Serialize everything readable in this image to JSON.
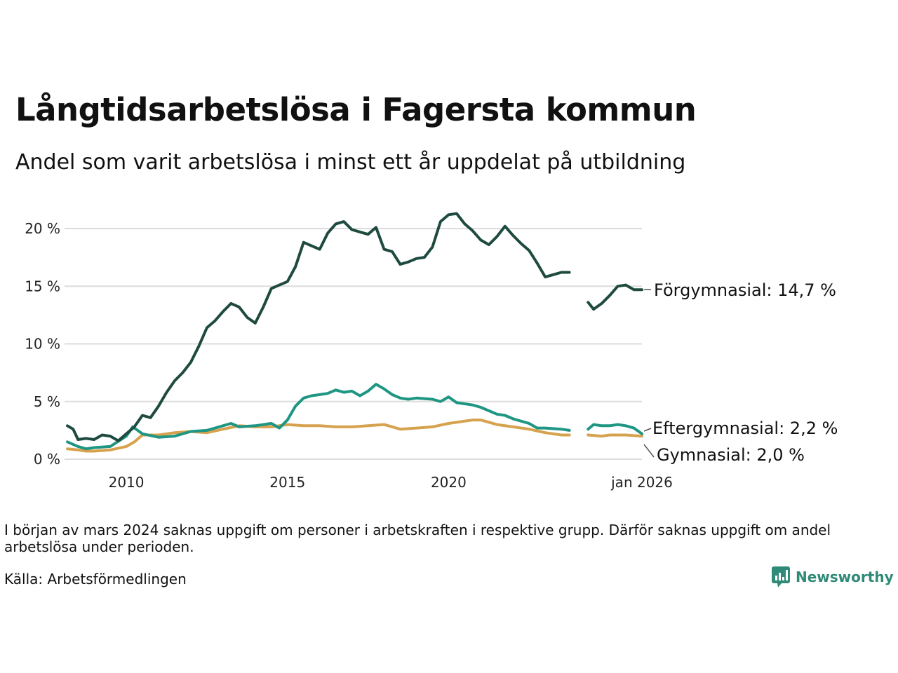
{
  "title": "Långtidsarbetslösa i Fagersta kommun",
  "subtitle": "Andel som varit arbetslösa i minst ett år uppdelat på utbildning",
  "note": "I början av mars 2024 saknas uppgift om personer i arbetskraften i respektive grupp. Därför saknas uppgift om andel arbetslösa under perioden.",
  "source": "Källa: Arbetsförmedlingen",
  "brand": "Newsworthy",
  "colors": {
    "forgymnasial": "#1f4a40",
    "eftergymnasial": "#1f9683",
    "gymnasial": "#d6a24e",
    "grid": "#dcdcdc",
    "brand": "#2f8a77"
  },
  "chart_data": {
    "type": "line",
    "x_start": 2008.17,
    "x_end": 2026.0,
    "ylim": [
      0,
      23
    ],
    "yticks": [
      0,
      5,
      10,
      15,
      20
    ],
    "ytick_labels": [
      "0 %",
      "5 %",
      "10 %",
      "15 %",
      "20 %"
    ],
    "xticks": [
      2010,
      2015,
      2020,
      2026
    ],
    "xtick_labels": [
      "2010",
      "2015",
      "2020",
      "jan 2026"
    ],
    "gap": [
      2023.9,
      2024.2
    ],
    "series": [
      {
        "name": "Förgymnasial",
        "label": "Förgymnasial: 14,7 %",
        "color_key": "forgymnasial",
        "points": [
          [
            2008.17,
            2.9
          ],
          [
            2008.35,
            2.6
          ],
          [
            2008.5,
            1.7
          ],
          [
            2008.75,
            1.8
          ],
          [
            2009.0,
            1.7
          ],
          [
            2009.25,
            2.1
          ],
          [
            2009.5,
            2.0
          ],
          [
            2009.75,
            1.6
          ],
          [
            2010.0,
            2.2
          ],
          [
            2010.25,
            2.8
          ],
          [
            2010.5,
            3.8
          ],
          [
            2010.75,
            3.6
          ],
          [
            2011.0,
            4.6
          ],
          [
            2011.25,
            5.8
          ],
          [
            2011.5,
            6.8
          ],
          [
            2011.75,
            7.5
          ],
          [
            2012.0,
            8.4
          ],
          [
            2012.25,
            9.8
          ],
          [
            2012.5,
            11.4
          ],
          [
            2012.75,
            12.0
          ],
          [
            2013.0,
            12.8
          ],
          [
            2013.25,
            13.5
          ],
          [
            2013.5,
            13.2
          ],
          [
            2013.75,
            12.3
          ],
          [
            2014.0,
            11.8
          ],
          [
            2014.25,
            13.2
          ],
          [
            2014.5,
            14.8
          ],
          [
            2014.75,
            15.1
          ],
          [
            2015.0,
            15.4
          ],
          [
            2015.25,
            16.7
          ],
          [
            2015.5,
            18.8
          ],
          [
            2015.75,
            18.5
          ],
          [
            2016.0,
            18.2
          ],
          [
            2016.25,
            19.6
          ],
          [
            2016.5,
            20.4
          ],
          [
            2016.75,
            20.6
          ],
          [
            2017.0,
            19.9
          ],
          [
            2017.25,
            19.7
          ],
          [
            2017.5,
            19.5
          ],
          [
            2017.75,
            20.1
          ],
          [
            2018.0,
            18.2
          ],
          [
            2018.25,
            18.0
          ],
          [
            2018.5,
            16.9
          ],
          [
            2018.75,
            17.1
          ],
          [
            2019.0,
            17.4
          ],
          [
            2019.25,
            17.5
          ],
          [
            2019.5,
            18.4
          ],
          [
            2019.75,
            20.6
          ],
          [
            2020.0,
            21.2
          ],
          [
            2020.25,
            21.3
          ],
          [
            2020.5,
            20.4
          ],
          [
            2020.75,
            19.8
          ],
          [
            2021.0,
            19.0
          ],
          [
            2021.25,
            18.6
          ],
          [
            2021.5,
            19.3
          ],
          [
            2021.75,
            20.2
          ],
          [
            2022.0,
            19.4
          ],
          [
            2022.25,
            18.7
          ],
          [
            2022.5,
            18.1
          ],
          [
            2022.75,
            17.0
          ],
          [
            2023.0,
            15.8
          ],
          [
            2023.25,
            16.0
          ],
          [
            2023.5,
            16.2
          ],
          [
            2023.75,
            16.2
          ],
          [
            2024.33,
            13.6
          ],
          [
            2024.5,
            13.0
          ],
          [
            2024.75,
            13.5
          ],
          [
            2025.0,
            14.2
          ],
          [
            2025.25,
            15.0
          ],
          [
            2025.5,
            15.1
          ],
          [
            2025.75,
            14.7
          ],
          [
            2026.0,
            14.7
          ]
        ]
      },
      {
        "name": "Eftergymnasial",
        "label": "Eftergymnasial:  2,2 %",
        "color_key": "eftergymnasial",
        "points": [
          [
            2008.17,
            1.5
          ],
          [
            2008.5,
            1.1
          ],
          [
            2008.75,
            0.9
          ],
          [
            2009.0,
            1.0
          ],
          [
            2009.5,
            1.1
          ],
          [
            2010.0,
            2.0
          ],
          [
            2010.2,
            2.8
          ],
          [
            2010.5,
            2.2
          ],
          [
            2011.0,
            1.9
          ],
          [
            2011.5,
            2.0
          ],
          [
            2012.0,
            2.4
          ],
          [
            2012.5,
            2.5
          ],
          [
            2013.0,
            2.9
          ],
          [
            2013.25,
            3.1
          ],
          [
            2013.5,
            2.8
          ],
          [
            2014.0,
            2.9
          ],
          [
            2014.5,
            3.1
          ],
          [
            2014.75,
            2.7
          ],
          [
            2015.0,
            3.4
          ],
          [
            2015.25,
            4.6
          ],
          [
            2015.5,
            5.3
          ],
          [
            2015.75,
            5.5
          ],
          [
            2016.0,
            5.6
          ],
          [
            2016.25,
            5.7
          ],
          [
            2016.5,
            6.0
          ],
          [
            2016.75,
            5.8
          ],
          [
            2017.0,
            5.9
          ],
          [
            2017.25,
            5.5
          ],
          [
            2017.5,
            5.9
          ],
          [
            2017.75,
            6.5
          ],
          [
            2018.0,
            6.1
          ],
          [
            2018.25,
            5.6
          ],
          [
            2018.5,
            5.3
          ],
          [
            2018.75,
            5.2
          ],
          [
            2019.0,
            5.3
          ],
          [
            2019.5,
            5.2
          ],
          [
            2019.75,
            5.0
          ],
          [
            2020.0,
            5.4
          ],
          [
            2020.25,
            4.9
          ],
          [
            2020.75,
            4.7
          ],
          [
            2021.0,
            4.5
          ],
          [
            2021.5,
            3.9
          ],
          [
            2021.75,
            3.8
          ],
          [
            2022.0,
            3.5
          ],
          [
            2022.5,
            3.1
          ],
          [
            2022.75,
            2.7
          ],
          [
            2023.0,
            2.7
          ],
          [
            2023.5,
            2.6
          ],
          [
            2023.75,
            2.5
          ],
          [
            2024.33,
            2.6
          ],
          [
            2024.5,
            3.0
          ],
          [
            2024.75,
            2.9
          ],
          [
            2025.0,
            2.9
          ],
          [
            2025.25,
            3.0
          ],
          [
            2025.5,
            2.9
          ],
          [
            2025.75,
            2.7
          ],
          [
            2026.0,
            2.2
          ]
        ]
      },
      {
        "name": "Gymnasial",
        "label": "Gymnasial:  2,0 %",
        "color_key": "gymnasial",
        "points": [
          [
            2008.17,
            0.9
          ],
          [
            2008.5,
            0.8
          ],
          [
            2008.75,
            0.7
          ],
          [
            2009.0,
            0.7
          ],
          [
            2009.5,
            0.8
          ],
          [
            2010.0,
            1.1
          ],
          [
            2010.25,
            1.5
          ],
          [
            2010.5,
            2.1
          ],
          [
            2011.0,
            2.1
          ],
          [
            2011.25,
            2.2
          ],
          [
            2011.5,
            2.3
          ],
          [
            2012.0,
            2.4
          ],
          [
            2012.5,
            2.3
          ],
          [
            2013.0,
            2.6
          ],
          [
            2013.5,
            2.9
          ],
          [
            2014.0,
            2.8
          ],
          [
            2014.5,
            2.8
          ],
          [
            2015.0,
            3.0
          ],
          [
            2015.5,
            2.9
          ],
          [
            2016.0,
            2.9
          ],
          [
            2016.5,
            2.8
          ],
          [
            2017.0,
            2.8
          ],
          [
            2017.5,
            2.9
          ],
          [
            2018.0,
            3.0
          ],
          [
            2018.5,
            2.6
          ],
          [
            2019.0,
            2.7
          ],
          [
            2019.5,
            2.8
          ],
          [
            2020.0,
            3.1
          ],
          [
            2020.5,
            3.3
          ],
          [
            2020.75,
            3.4
          ],
          [
            2021.0,
            3.4
          ],
          [
            2021.5,
            3.0
          ],
          [
            2022.0,
            2.8
          ],
          [
            2022.5,
            2.6
          ],
          [
            2023.0,
            2.3
          ],
          [
            2023.5,
            2.1
          ],
          [
            2023.75,
            2.1
          ],
          [
            2024.33,
            2.1
          ],
          [
            2024.75,
            2.0
          ],
          [
            2025.0,
            2.1
          ],
          [
            2025.5,
            2.1
          ],
          [
            2026.0,
            2.0
          ]
        ]
      }
    ]
  }
}
